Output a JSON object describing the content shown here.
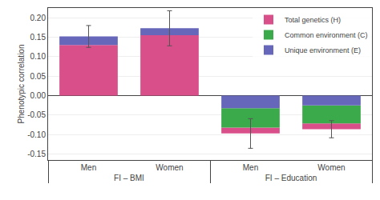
{
  "chart_data": {
    "type": "bar",
    "stacked": true,
    "categories": [
      "Men",
      "Women",
      "Men",
      "Women"
    ],
    "annotations": [
      {
        "text": "FI – BMI",
        "categories": [
          0,
          1
        ]
      },
      {
        "text": "FI – Education",
        "categories": [
          2,
          3
        ]
      }
    ],
    "ylabel": "Phenotypic correlation",
    "series": [
      {
        "name": "Total genetics (H)",
        "color": "#d94f8a",
        "values": [
          0.13,
          0.155,
          -0.015,
          -0.015
        ]
      },
      {
        "name": "Common environment (C)",
        "color": "#3aaa4a",
        "values": [
          0.0,
          0.0,
          -0.05,
          -0.046
        ]
      },
      {
        "name": "Unique environment (E)",
        "color": "#6666bb",
        "values": [
          0.022,
          0.018,
          -0.032,
          -0.025
        ]
      }
    ],
    "error_bars": [
      0.028,
      0.045,
      0.038,
      0.022
    ],
    "ylim": [
      -0.165,
      0.225
    ],
    "yticks": [
      -0.15,
      {
        "value": -0.1,
        "label": "-0.10"
      },
      0.05,
      {
        "value": -0.05,
        "label": "-0.05"
      },
      {
        "value": 0.0,
        "label": "0.00"
      },
      {
        "value": 0.1,
        "label": "0.10"
      },
      0.15,
      {
        "value": 0.2,
        "label": "0.20"
      }
    ],
    "grid": true,
    "legend": "upper right"
  }
}
